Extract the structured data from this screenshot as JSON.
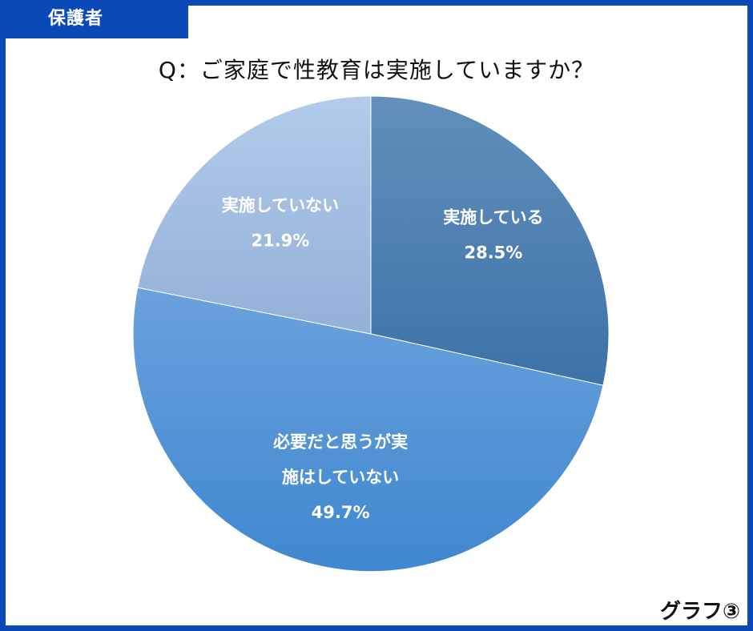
{
  "header": {
    "tag": "保護者",
    "footer": "グラフ③"
  },
  "colors": {
    "frame": "#0a49b7",
    "slice_gradients": [
      [
        "#6390bc",
        "#3d72a8"
      ],
      [
        "#6aa2dd",
        "#3f87cf"
      ],
      [
        "#b2cbec",
        "#93b0d7"
      ]
    ]
  },
  "chart_data": {
    "type": "pie",
    "title": "Q：ご家庭で性教育は実施していますか？",
    "start_angle_deg": 0,
    "direction": "clockwise",
    "slices": [
      {
        "label_lines": [
          "実施している"
        ],
        "value": 28.5,
        "value_label": "28.5%"
      },
      {
        "label_lines": [
          "必要だと思うが実",
          "施はしていない"
        ],
        "value": 49.7,
        "value_label": "49.7%"
      },
      {
        "label_lines": [
          "実施していない"
        ],
        "value": 21.9,
        "value_label": "21.9%"
      }
    ]
  }
}
